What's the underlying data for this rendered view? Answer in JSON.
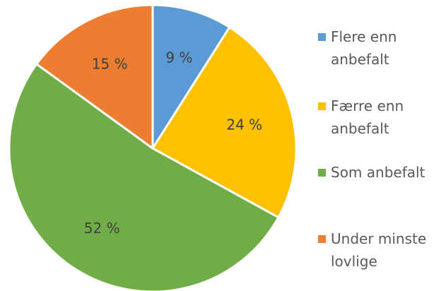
{
  "chart_data": {
    "type": "pie",
    "title": "",
    "start_angle_deg": 0,
    "direction": "clockwise",
    "legend_position": "right",
    "slices": [
      {
        "label_lines": [
          "Flere enn",
          "anbefalt"
        ],
        "value": 9,
        "display": "9 %",
        "color": "#5B9BD5"
      },
      {
        "label_lines": [
          "Færre enn",
          "anbefalt"
        ],
        "value": 24,
        "display": "24 %",
        "color": "#FFC000"
      },
      {
        "label_lines": [
          "Som anbefalt"
        ],
        "value": 52,
        "display": "52 %",
        "color": "#70AD47"
      },
      {
        "label_lines": [
          "Under minste",
          "lovlige"
        ],
        "value": 15,
        "display": "15 %",
        "color": "#ED7D31"
      }
    ]
  }
}
